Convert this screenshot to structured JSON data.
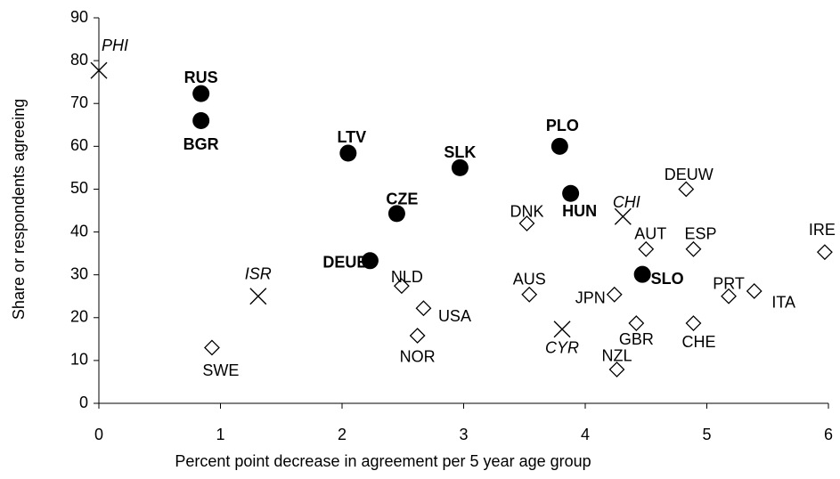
{
  "chart_data": {
    "type": "scatter",
    "x_label": "Percent point decrease in agreement per 5 year age group",
    "y_label": "Share or respondents agreeing",
    "xlim": [
      0,
      6
    ],
    "xticks": [
      0,
      1,
      2,
      3,
      4,
      5,
      6
    ],
    "ylim": [
      0,
      90
    ],
    "yticks": [
      0,
      10,
      20,
      30,
      40,
      50,
      60,
      70,
      80,
      90
    ],
    "series": [
      {
        "marker": "circle",
        "color": "#000000",
        "label_style": "bold",
        "labels": [
          "RUS",
          "BGR",
          "LTV",
          "SLK",
          "PLO",
          "HUN",
          "CZE",
          "DEUE",
          "SLO"
        ],
        "x": [
          0.84,
          0.84,
          2.05,
          2.97,
          3.79,
          3.88,
          2.45,
          2.23,
          4.47
        ],
        "values": [
          72.3,
          66,
          58.4,
          55,
          60,
          49,
          44.3,
          33.3,
          30.1
        ]
      },
      {
        "marker": "cross",
        "color": "#000000",
        "label_style": "italic",
        "labels": [
          "PHI",
          "ISR",
          "CHI",
          "CYR"
        ],
        "x": [
          0,
          1.31,
          4.31,
          3.81
        ],
        "values": [
          77.7,
          25,
          43.6,
          17.3
        ]
      },
      {
        "marker": "diamond",
        "color": "#000000",
        "label_style": "normal",
        "labels": [
          "SWE",
          "NLD",
          "USA",
          "NOR",
          "DNK",
          "AUS",
          "JPN",
          "NZL",
          "GBR",
          "AUT",
          "DEUW",
          "ESP",
          "CHE",
          "PRT",
          "ITA",
          "IRE"
        ],
        "x": [
          0.93,
          2.49,
          2.67,
          2.62,
          3.52,
          3.54,
          4.24,
          4.26,
          4.42,
          4.5,
          4.83,
          4.89,
          4.89,
          5.18,
          5.39,
          5.97
        ],
        "values": [
          13,
          27.4,
          22.2,
          15.8,
          42,
          25.4,
          25.4,
          7.9,
          18.7,
          36,
          50,
          36,
          18.7,
          25,
          26.2,
          35.3
        ]
      }
    ]
  }
}
